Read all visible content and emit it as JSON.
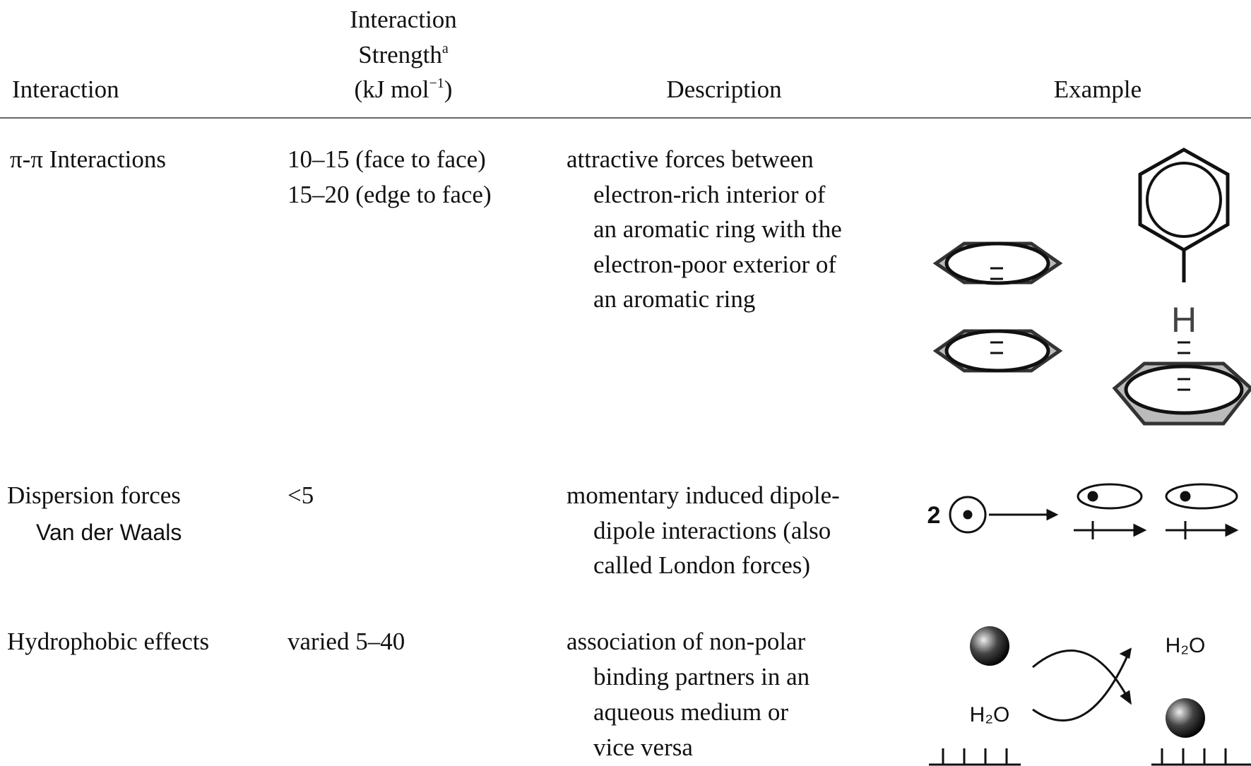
{
  "table": {
    "headers": {
      "interaction": "Interaction",
      "strength": {
        "line1": "Interaction",
        "line2": "Strength",
        "footnote": "a",
        "unit": "(kJ mol",
        "unit_exponent": "−1",
        "unit_close": ")"
      },
      "description": "Description",
      "example": "Example"
    },
    "rows": [
      {
        "interaction": "π-π Interactions",
        "strength": [
          "10–15 (face to face)",
          "15–20 (edge to face)"
        ],
        "description": [
          "attractive forces between",
          "electron-rich interior of",
          "an aromatic ring with the",
          "electron-poor exterior of",
          "an aromatic ring"
        ],
        "example_labels": [
          "H"
        ]
      },
      {
        "interaction": "Dispersion forces",
        "annotation": "Van der Waals",
        "strength": [
          "<5"
        ],
        "description": [
          "momentary induced dipole-",
          "dipole interactions (also",
          "called London forces)"
        ],
        "example_labels": [
          "2"
        ]
      },
      {
        "interaction": "Hydrophobic effects",
        "strength": [
          "varied 5–40"
        ],
        "description": [
          "association of non-polar",
          "binding partners in an",
          "aqueous medium or",
          "vice versa"
        ],
        "example_labels": [
          "H₂O",
          "H₂O"
        ]
      }
    ]
  }
}
